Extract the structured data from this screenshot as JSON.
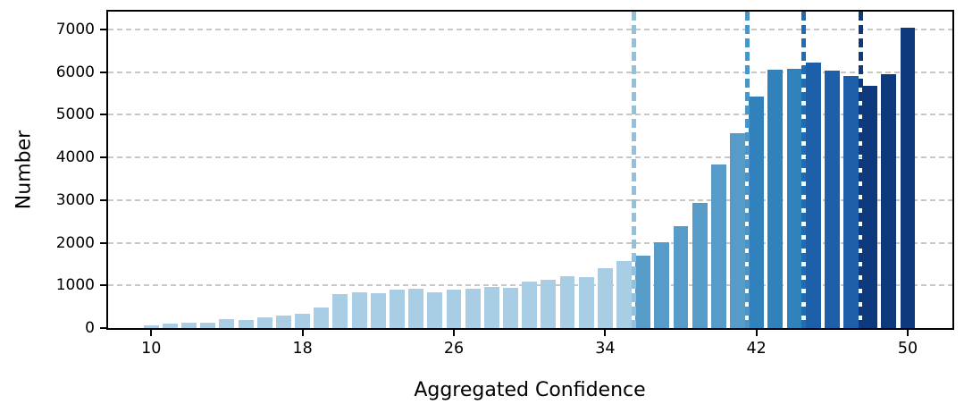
{
  "chart_data": {
    "type": "bar",
    "title": "",
    "xlabel": "Aggregated Confidence",
    "ylabel": "Number",
    "x": [
      10,
      11,
      12,
      13,
      14,
      15,
      16,
      17,
      18,
      19,
      20,
      21,
      22,
      23,
      24,
      25,
      26,
      27,
      28,
      29,
      30,
      31,
      32,
      33,
      34,
      35,
      36,
      37,
      38,
      39,
      40,
      41,
      42,
      43,
      44,
      45,
      46,
      47,
      48,
      49,
      50
    ],
    "values": [
      65,
      95,
      125,
      120,
      205,
      185,
      260,
      295,
      340,
      490,
      795,
      830,
      820,
      905,
      930,
      830,
      900,
      925,
      965,
      945,
      1095,
      1140,
      1225,
      1190,
      1410,
      1570,
      1700,
      2010,
      2390,
      2930,
      3840,
      4560,
      5430,
      6050,
      6070,
      6230,
      6040,
      5920,
      5690,
      5950,
      7040
    ],
    "bar_width_units": 0.8,
    "color_groups": [
      {
        "from": 10,
        "to": 35,
        "color": "#a9cde4"
      },
      {
        "from": 36,
        "to": 41,
        "color": "#579bc9"
      },
      {
        "from": 42,
        "to": 44,
        "color": "#3181bd"
      },
      {
        "from": 45,
        "to": 47,
        "color": "#1d5fa9"
      },
      {
        "from": 48,
        "to": 50,
        "color": "#0d3a7c"
      }
    ],
    "vlines": [
      {
        "x": 35.5,
        "color": "#8fc1e0"
      },
      {
        "x": 41.5,
        "color": "#4a94c8"
      },
      {
        "x": 44.5,
        "color": "#1e6db4"
      },
      {
        "x": 47.5,
        "color": "#0d3a7c"
      }
    ],
    "xticks": [
      10,
      18,
      26,
      34,
      42,
      50
    ],
    "yticks": [
      0,
      1000,
      2000,
      3000,
      4000,
      5000,
      6000,
      7000
    ],
    "xlim": [
      7.72,
      52.36
    ],
    "ylim": [
      0,
      7420
    ],
    "grid": {
      "axis": "y",
      "style": "dashed",
      "color": "#c7c7c7"
    },
    "legend": null
  }
}
